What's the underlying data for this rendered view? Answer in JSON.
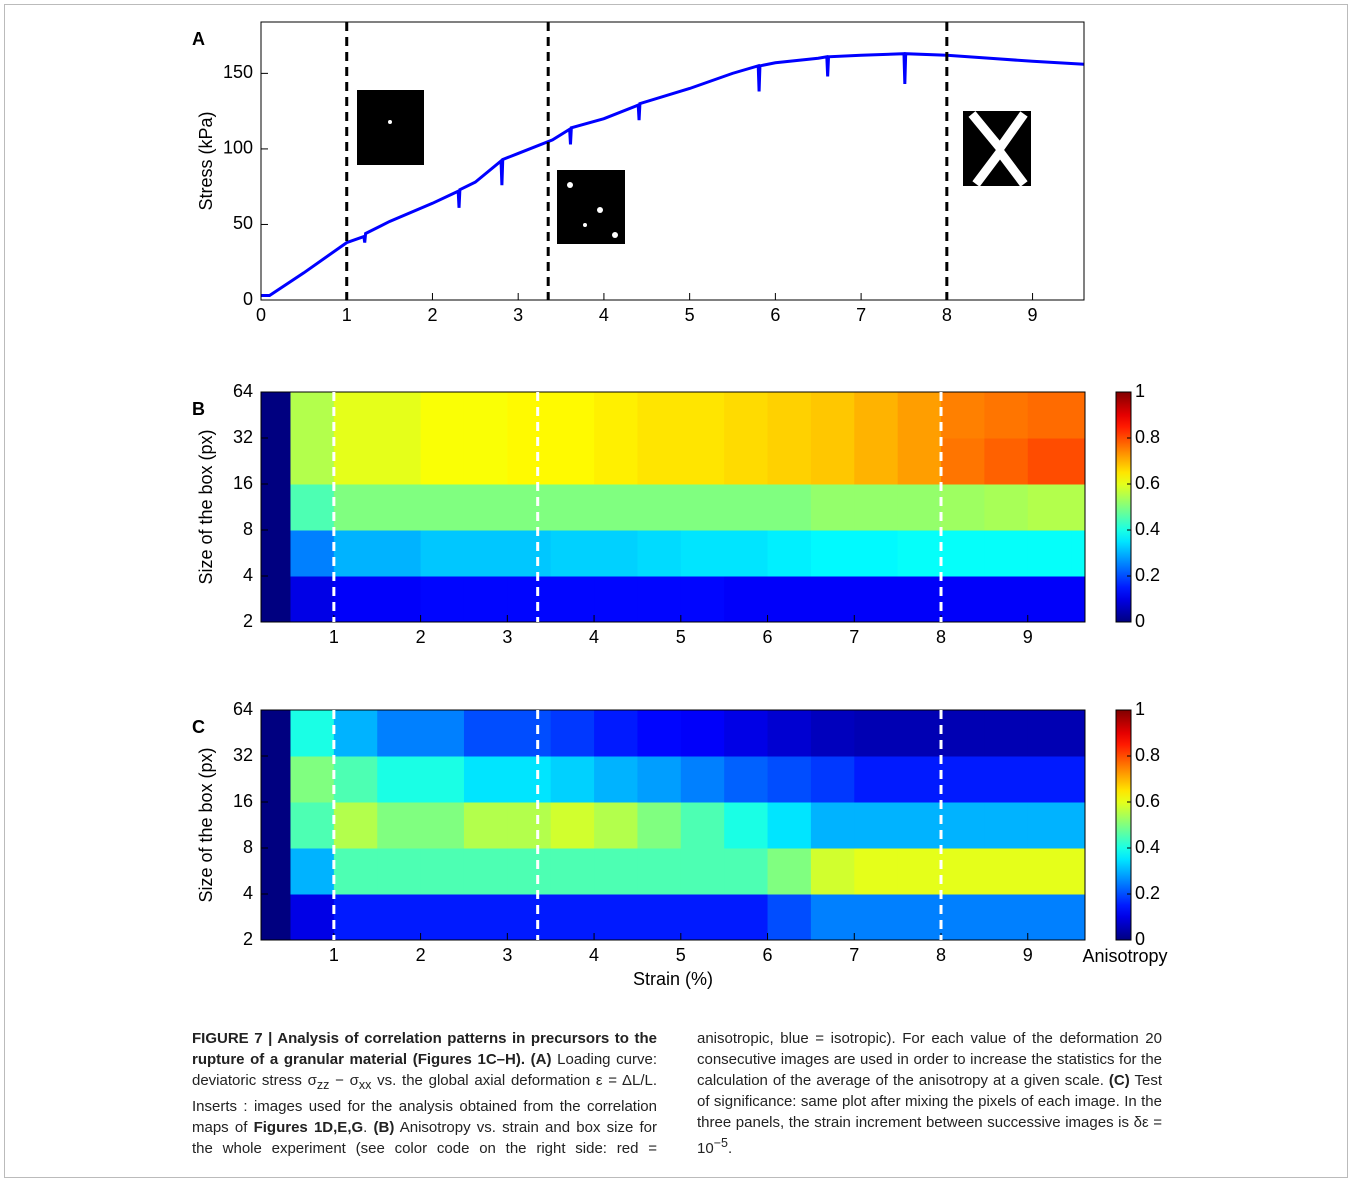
{
  "chart_data": [
    {
      "type": "line",
      "label": "A",
      "ylabel": "Stress (kPa)",
      "xlim": [
        0,
        9.6
      ],
      "xticks": [
        0,
        1,
        2,
        3,
        4,
        5,
        6,
        7,
        8,
        9
      ],
      "ylim": [
        0,
        184
      ],
      "yticks": [
        0,
        50,
        100,
        150
      ],
      "vlines": [
        1,
        3.35,
        8
      ],
      "vline_color": "#000000",
      "series": [
        {
          "color": "#0000ff",
          "x": [
            0,
            0.1,
            0.5,
            1,
            1.2,
            1.21,
            1.22,
            1.5,
            2,
            2.3,
            2.31,
            2.32,
            2.5,
            2.8,
            2.81,
            2.82,
            3,
            3.4,
            3.6,
            3.61,
            3.62,
            4,
            4.4,
            4.41,
            4.42,
            5,
            5.5,
            5.8,
            5.81,
            5.82,
            6,
            6.5,
            6.6,
            6.61,
            6.62,
            7,
            7.5,
            7.51,
            7.52,
            8,
            8.5,
            9,
            9.6
          ],
          "values": [
            3,
            3,
            18,
            38,
            42,
            38,
            44,
            52,
            64,
            72,
            61,
            73,
            78,
            92,
            76,
            93,
            97,
            106,
            113,
            103,
            114,
            120,
            129,
            119,
            130,
            140,
            150,
            155,
            138,
            155,
            157,
            160,
            161,
            148,
            161,
            162,
            163,
            143,
            163,
            162,
            160,
            158,
            156
          ]
        }
      ]
    },
    {
      "type": "heatmap",
      "label": "B",
      "ylabel": "Size of the box (px)",
      "colormap": "jet",
      "xlim": [
        0.16,
        9.66
      ],
      "xticks": [
        1,
        2,
        3,
        4,
        5,
        6,
        7,
        8,
        9
      ],
      "ylim": [
        2,
        64
      ],
      "yticks": [
        2,
        4,
        8,
        16,
        32,
        64
      ],
      "yscale": "log",
      "zlim": [
        0,
        1
      ],
      "zticks": [
        0,
        0.2,
        0.4,
        0.6,
        0.8,
        1
      ],
      "vlines": [
        1,
        3.35,
        8
      ],
      "vline_color": "#ffffff",
      "x_edges": [
        0.16,
        0.5,
        1,
        1.5,
        2,
        2.5,
        3,
        3.5,
        4,
        4.5,
        5,
        5.5,
        6,
        6.5,
        7,
        7.5,
        8,
        8.5,
        9,
        9.5,
        9.66
      ],
      "y_edges": [
        2,
        4,
        8,
        16,
        32,
        64
      ],
      "z": [
        [
          0,
          0.1,
          0.12,
          0.12,
          0.13,
          0.13,
          0.13,
          0.13,
          0.13,
          0.13,
          0.13,
          0.12,
          0.12,
          0.12,
          0.12,
          0.12,
          0.12,
          0.12,
          0.12,
          0.12
        ],
        [
          0,
          0.25,
          0.3,
          0.3,
          0.32,
          0.32,
          0.32,
          0.33,
          0.33,
          0.34,
          0.35,
          0.35,
          0.36,
          0.37,
          0.37,
          0.38,
          0.38,
          0.38,
          0.38,
          0.38
        ],
        [
          0,
          0.45,
          0.5,
          0.5,
          0.5,
          0.5,
          0.5,
          0.5,
          0.5,
          0.5,
          0.5,
          0.5,
          0.5,
          0.52,
          0.52,
          0.52,
          0.53,
          0.54,
          0.55,
          0.55
        ],
        [
          0,
          0.55,
          0.6,
          0.6,
          0.62,
          0.62,
          0.63,
          0.63,
          0.64,
          0.65,
          0.65,
          0.66,
          0.67,
          0.68,
          0.7,
          0.72,
          0.76,
          0.78,
          0.8,
          0.8
        ],
        [
          0,
          0.55,
          0.6,
          0.6,
          0.62,
          0.62,
          0.63,
          0.63,
          0.64,
          0.65,
          0.65,
          0.66,
          0.67,
          0.68,
          0.7,
          0.72,
          0.75,
          0.76,
          0.77,
          0.77
        ]
      ]
    },
    {
      "type": "heatmap",
      "label": "C",
      "ylabel": "Size of the box (px)",
      "xlabel": "Strain (%)",
      "colorbar_label": "Anisotropy",
      "colormap": "jet",
      "xlim": [
        0.16,
        9.66
      ],
      "xticks": [
        1,
        2,
        3,
        4,
        5,
        6,
        7,
        8,
        9
      ],
      "ylim": [
        2,
        64
      ],
      "yticks": [
        2,
        4,
        8,
        16,
        32,
        64
      ],
      "yscale": "log",
      "zlim": [
        0,
        1
      ],
      "zticks": [
        0,
        0.2,
        0.4,
        0.6,
        0.8,
        1
      ],
      "vlines": [
        1,
        3.35,
        8
      ],
      "vline_color": "#ffffff",
      "x_edges": [
        0.16,
        0.5,
        1,
        1.5,
        2,
        2.5,
        3,
        3.5,
        4,
        4.5,
        5,
        5.5,
        6,
        6.5,
        7,
        7.5,
        8,
        8.5,
        9,
        9.5,
        9.66
      ],
      "y_edges": [
        2,
        4,
        8,
        16,
        32,
        64
      ],
      "z": [
        [
          0,
          0.1,
          0.15,
          0.15,
          0.15,
          0.15,
          0.15,
          0.15,
          0.15,
          0.15,
          0.15,
          0.15,
          0.2,
          0.25,
          0.25,
          0.25,
          0.25,
          0.25,
          0.25,
          0.25
        ],
        [
          0,
          0.3,
          0.45,
          0.45,
          0.45,
          0.45,
          0.45,
          0.45,
          0.45,
          0.45,
          0.45,
          0.45,
          0.5,
          0.58,
          0.6,
          0.6,
          0.6,
          0.6,
          0.6,
          0.6
        ],
        [
          0,
          0.45,
          0.55,
          0.5,
          0.5,
          0.55,
          0.55,
          0.58,
          0.55,
          0.5,
          0.45,
          0.4,
          0.35,
          0.3,
          0.3,
          0.3,
          0.3,
          0.3,
          0.3,
          0.3
        ],
        [
          0,
          0.5,
          0.45,
          0.4,
          0.4,
          0.35,
          0.35,
          0.33,
          0.3,
          0.28,
          0.25,
          0.22,
          0.2,
          0.18,
          0.15,
          0.15,
          0.15,
          0.15,
          0.15,
          0.15
        ],
        [
          0,
          0.4,
          0.3,
          0.25,
          0.25,
          0.2,
          0.2,
          0.18,
          0.15,
          0.13,
          0.12,
          0.1,
          0.08,
          0.06,
          0.05,
          0.05,
          0.05,
          0.05,
          0.05,
          0.05
        ]
      ]
    }
  ],
  "caption": [
    {
      "text": "FIGURE 7 | Analysis of correlation patterns in precursors to the rupture of a granular material (Figures 1C–H).",
      "style": "bold"
    },
    {
      "text": " "
    },
    {
      "text": "(A)",
      "style": "bold"
    },
    {
      "text": " Loading curve: deviatoric stress σ"
    },
    {
      "text": "zz",
      "style": "sub"
    },
    {
      "text": " − σ"
    },
    {
      "text": "xx",
      "style": "sub"
    },
    {
      "text": " vs. the global axial deformation ε = ΔL/L. Inserts : images used for the analysis obtained from the correlation maps of "
    },
    {
      "text": "Figures 1D,E,G",
      "style": "bold"
    },
    {
      "text": ". "
    },
    {
      "text": "(B)",
      "style": "bold"
    },
    {
      "text": " Anisotropy vs. strain and box size for the whole experiment (see color code on the right side: red = anisotropic, blue = isotropic). For each value of the deformation 20 consecutive images are used in order to increase the statistics for the calculation of the average of the anisotropy at a given scale. "
    },
    {
      "text": "(C)",
      "style": "bold"
    },
    {
      "text": " Test of significance: same plot after mixing the pixels of each image. In the three panels, the strain increment between successive images is δε = 10"
    },
    {
      "text": "−5",
      "style": "sup"
    },
    {
      "text": "."
    }
  ]
}
